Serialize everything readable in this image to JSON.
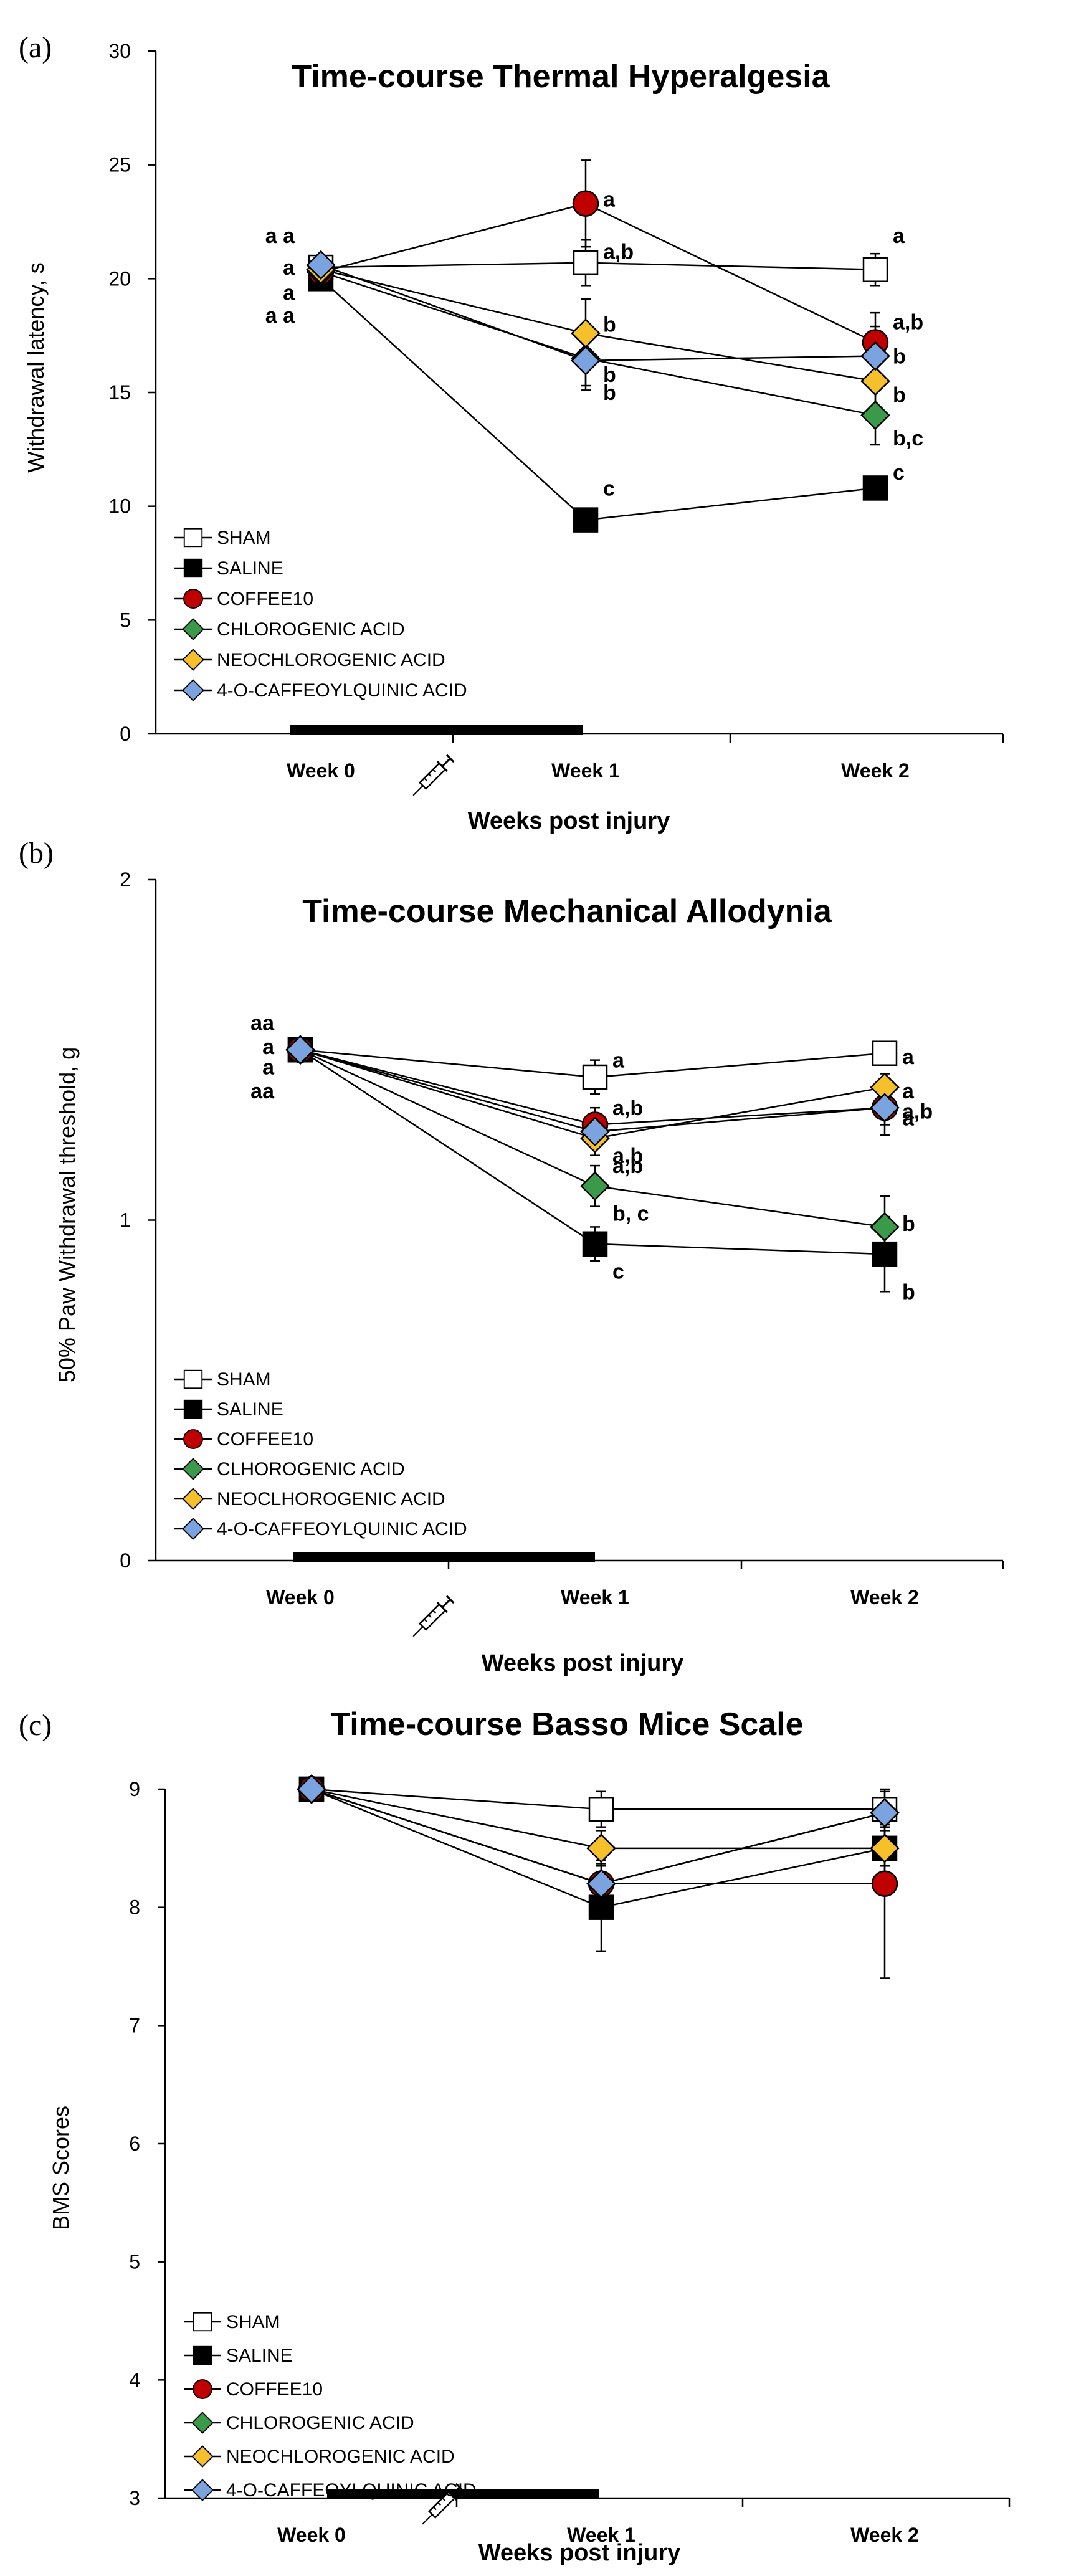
{
  "chart_data": [
    {
      "type": "line",
      "panel": "(a)",
      "title": "Time-course Thermal Hyperalgesia",
      "xlabel": "Weeks post injury",
      "ylabel": "Withdrawal latency, s",
      "categories": [
        "Week 0",
        "Week 1",
        "Week 2"
      ],
      "ylim": [
        0,
        30
      ],
      "yticks": [
        "0",
        "5",
        "10",
        "15",
        "20",
        "25",
        "30"
      ],
      "treatment_bar": "Week 0 to Week 1",
      "legend": {
        "position": "bottom-left"
      },
      "series": [
        {
          "name": "SHAM",
          "marker": "square",
          "color": "#ffffff",
          "values": [
            20.5,
            20.7,
            20.4
          ],
          "errors": [
            0.3,
            1.0,
            0.7
          ]
        },
        {
          "name": "SALINE",
          "marker": "square",
          "color": "#000000",
          "values": [
            20.0,
            9.4,
            10.8
          ],
          "errors": [
            0.3,
            0.3,
            0.3
          ]
        },
        {
          "name": "COFFEE10",
          "marker": "circle",
          "color": "#c00000",
          "values": [
            20.3,
            23.3,
            17.2
          ],
          "errors": [
            0.3,
            1.9,
            1.3
          ]
        },
        {
          "name": "CHLOROGENIC ACID",
          "marker": "diamond",
          "color": "#3a9a4a",
          "values": [
            20.3,
            16.5,
            14.0
          ],
          "errors": [
            0.3,
            1.2,
            1.3
          ]
        },
        {
          "name": "NEOCHLOROGENIC ACID",
          "marker": "diamond",
          "color": "#f6c02a",
          "values": [
            20.4,
            17.6,
            15.5
          ],
          "errors": [
            0.3,
            1.5,
            1.2
          ]
        },
        {
          "name": "4-O-CAFFEOYLQUINIC ACID",
          "marker": "diamond",
          "color": "#7aa3e0",
          "values": [
            20.6,
            16.4,
            16.6
          ],
          "errors": [
            0.3,
            1.3,
            1.3
          ]
        }
      ],
      "annotations": [
        {
          "text": "a a",
          "x": "Week 0",
          "y": 21.9
        },
        {
          "text": "a",
          "x": "Week 0",
          "y": 20.5
        },
        {
          "text": "a",
          "x": "Week 0",
          "y": 19.4
        },
        {
          "text": "a a",
          "x": "Week 0",
          "y": 18.4
        },
        {
          "text": "a",
          "x": "Week 1",
          "y": 23.5
        },
        {
          "text": "a,b",
          "x": "Week 1",
          "y": 21.2
        },
        {
          "text": "b",
          "x": "Week 1",
          "y": 18.0
        },
        {
          "text": "b",
          "x": "Week 1",
          "y": 15.8
        },
        {
          "text": "b",
          "x": "Week 1",
          "y": 15.0
        },
        {
          "text": "c",
          "x": "Week 1",
          "y": 10.8
        },
        {
          "text": "a",
          "x": "Week 2",
          "y": 21.9
        },
        {
          "text": "a,b",
          "x": "Week 2",
          "y": 18.1
        },
        {
          "text": "b",
          "x": "Week 2",
          "y": 16.6
        },
        {
          "text": "b",
          "x": "Week 2",
          "y": 14.9
        },
        {
          "text": "b,c",
          "x": "Week 2",
          "y": 13.0
        },
        {
          "text": "c",
          "x": "Week 2",
          "y": 11.5
        }
      ]
    },
    {
      "type": "line",
      "panel": "(b)",
      "title": "Time-course Mechanical Allodynia",
      "xlabel": "Weeks post injury",
      "ylabel": "50% Paw Withdrawal threshold, g",
      "categories": [
        "Week 0",
        "Week 1",
        "Week 2"
      ],
      "ylim": [
        0,
        2
      ],
      "yticks": [
        "0",
        "1",
        "2"
      ],
      "treatment_bar": "Week 0 to Week 1",
      "legend": {
        "position": "bottom-left"
      },
      "series": [
        {
          "name": "SHAM",
          "marker": "square",
          "color": "#ffffff",
          "values": [
            1.5,
            1.42,
            1.49
          ],
          "errors": [
            0.02,
            0.05,
            0.02
          ]
        },
        {
          "name": "SALINE",
          "marker": "square",
          "color": "#000000",
          "values": [
            1.5,
            0.93,
            0.9
          ],
          "errors": [
            0.02,
            0.05,
            0.11
          ]
        },
        {
          "name": "COFFEE10",
          "marker": "circle",
          "color": "#c00000",
          "values": [
            1.5,
            1.28,
            1.33
          ],
          "errors": [
            0.02,
            0.05,
            0.05
          ]
        },
        {
          "name": "CLHOROGENIC ACID",
          "marker": "diamond",
          "color": "#3a9a4a",
          "values": [
            1.5,
            1.1,
            0.98
          ],
          "errors": [
            0.02,
            0.06,
            0.09
          ]
        },
        {
          "name": "NEOCLHOROGENIC ACID",
          "marker": "diamond",
          "color": "#f6c02a",
          "values": [
            1.5,
            1.24,
            1.39
          ],
          "errors": [
            0.02,
            0.05,
            0.04
          ]
        },
        {
          "name": "4-O-CAFFEOYLQUINIC ACID",
          "marker": "diamond",
          "color": "#7aa3e0",
          "values": [
            1.5,
            1.26,
            1.33
          ],
          "errors": [
            0.02,
            0.04,
            0.08
          ]
        }
      ],
      "annotations": [
        {
          "text": "aa",
          "x": "Week 0",
          "y": 1.58
        },
        {
          "text": "a",
          "x": "Week 0",
          "y": 1.51
        },
        {
          "text": "a",
          "x": "Week 0",
          "y": 1.45
        },
        {
          "text": "aa",
          "x": "Week 0",
          "y": 1.38
        },
        {
          "text": "a",
          "x": "Week 1",
          "y": 1.47
        },
        {
          "text": "a,b",
          "x": "Week 1",
          "y": 1.33
        },
        {
          "text": "a,b",
          "x": "Week 1",
          "y": 1.19
        },
        {
          "text": "a,b",
          "x": "Week 1",
          "y": 1.16
        },
        {
          "text": "b, c",
          "x": "Week 1",
          "y": 1.02
        },
        {
          "text": "c",
          "x": "Week 1",
          "y": 0.85
        },
        {
          "text": "a",
          "x": "Week 2",
          "y": 1.48
        },
        {
          "text": "a",
          "x": "Week 2",
          "y": 1.38
        },
        {
          "text": "a,b",
          "x": "Week 2",
          "y": 1.32
        },
        {
          "text": "a",
          "x": "Week 2",
          "y": 1.3
        },
        {
          "text": "b",
          "x": "Week 2",
          "y": 0.99
        },
        {
          "text": "b",
          "x": "Week 2",
          "y": 0.79
        }
      ]
    },
    {
      "type": "line",
      "panel": "(c)",
      "title": "Time-course Basso Mice Scale",
      "xlabel": "Weeks post injury",
      "ylabel": "BMS Scores",
      "categories": [
        "Week 0",
        "Week 1",
        "Week 2"
      ],
      "ylim": [
        3,
        9
      ],
      "yticks": [
        "3",
        "4",
        "5",
        "6",
        "7",
        "8",
        "9"
      ],
      "treatment_bar": "Week 0 to Week 1",
      "legend": {
        "position": "bottom-left"
      },
      "series": [
        {
          "name": "SHAM",
          "marker": "square",
          "color": "#ffffff",
          "values": [
            9,
            8.83,
            8.83
          ],
          "errors": [
            0,
            0.15,
            0.15
          ]
        },
        {
          "name": "SALINE",
          "marker": "square",
          "color": "#000000",
          "values": [
            9,
            8.0,
            8.5
          ],
          "errors": [
            0,
            0.37,
            0.2
          ]
        },
        {
          "name": "COFFEE10",
          "marker": "circle",
          "color": "#c00000",
          "values": [
            9,
            8.2,
            8.2
          ],
          "errors": [
            0,
            0.2,
            0.8
          ]
        },
        {
          "name": "CHLOROGENIC ACID",
          "marker": "diamond",
          "color": "#3a9a4a",
          "values": [
            9,
            8.2,
            8.8
          ],
          "errors": [
            0,
            0.1,
            0.1
          ]
        },
        {
          "name": "NEOCHLOROGENIC ACID",
          "marker": "diamond",
          "color": "#f6c02a",
          "values": [
            9,
            8.5,
            8.5
          ],
          "errors": [
            0,
            0.15,
            0.15
          ]
        },
        {
          "name": "4-O-CAFFEOYLQUINIC ACID",
          "marker": "diamond",
          "color": "#7aa3e0",
          "values": [
            9,
            8.2,
            8.8
          ],
          "errors": [
            0,
            0.1,
            0.1
          ]
        }
      ],
      "annotations": []
    }
  ]
}
